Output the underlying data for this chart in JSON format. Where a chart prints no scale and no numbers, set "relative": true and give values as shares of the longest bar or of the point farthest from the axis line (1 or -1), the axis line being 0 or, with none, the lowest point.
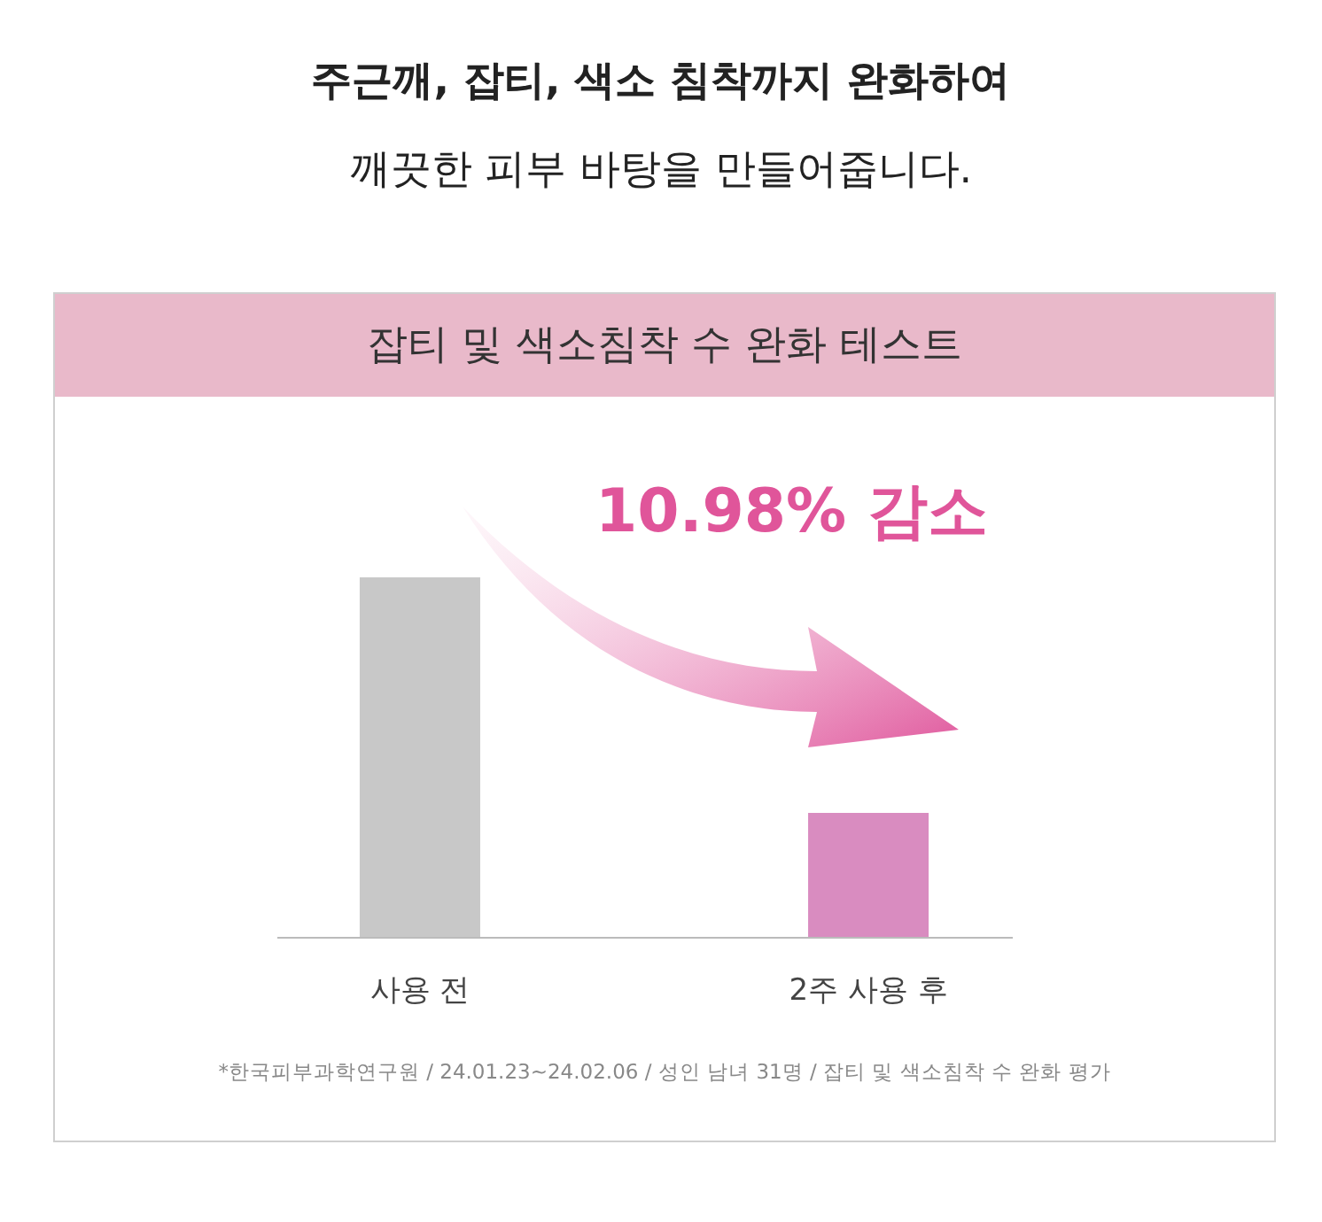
{
  "chart_data": {
    "type": "bar",
    "title": "주근깨, 잡티, 색소 침착까지 완화하여",
    "subtitle": "깨끗한 피부 바탕을 만들어줍니다.",
    "annotations": [
      "잡티 및 색소침착 수 완화 테스트",
      "10.98% 감소",
      "*한국피부과학연구원 / 24.01.23~24.02.06 / 성인 남녀 31명 / 잡티 및 색소침착 수 완화 평가"
    ],
    "categories": [
      "사용 전",
      "2주 사용 후"
    ],
    "values": [
      1,
      0.345
    ],
    "colors": [
      "#c8c8c8",
      "#d98cc0"
    ],
    "relative": true
  }
}
